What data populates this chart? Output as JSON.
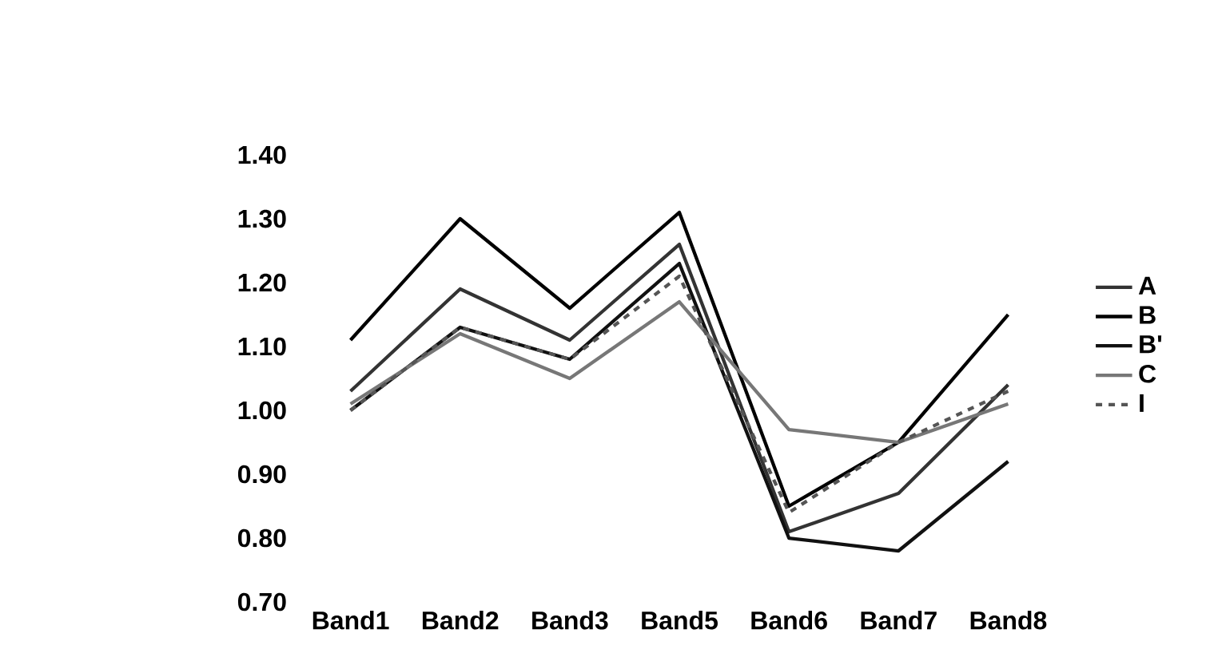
{
  "chart_data": {
    "type": "line",
    "categories": [
      "Band1",
      "Band2",
      "Band3",
      "Band5",
      "Band6",
      "Band7",
      "Band8"
    ],
    "series": [
      {
        "name": "A",
        "color": "#333333",
        "line_style": "solid",
        "values": [
          1.03,
          1.19,
          1.11,
          1.26,
          0.81,
          0.87,
          1.04
        ]
      },
      {
        "name": "B",
        "color": "#000000",
        "line_style": "solid",
        "values": [
          1.11,
          1.3,
          1.16,
          1.31,
          0.85,
          0.95,
          1.15
        ]
      },
      {
        "name": "B'",
        "color": "#111111",
        "line_style": "solid",
        "values": [
          1.0,
          1.13,
          1.08,
          1.23,
          0.8,
          0.78,
          0.92
        ]
      },
      {
        "name": "C",
        "color": "#777777",
        "line_style": "solid",
        "values": [
          1.01,
          1.12,
          1.05,
          1.17,
          0.97,
          0.95,
          1.01
        ]
      },
      {
        "name": "I",
        "color": "#555555",
        "line_style": "dashed",
        "values": [
          1.0,
          1.13,
          1.08,
          1.21,
          0.84,
          0.95,
          1.03
        ]
      }
    ],
    "ylim": [
      0.7,
      1.4
    ],
    "yticks": [
      {
        "value": 0.7,
        "label": "0.70"
      },
      {
        "value": 0.8,
        "label": "0.80"
      },
      {
        "value": 0.9,
        "label": "0.90"
      },
      {
        "value": 1.0,
        "label": "1.00"
      },
      {
        "value": 1.1,
        "label": "1.10"
      },
      {
        "value": 1.2,
        "label": "1.20"
      },
      {
        "value": 1.3,
        "label": "1.30"
      },
      {
        "value": 1.4,
        "label": "1.40"
      }
    ],
    "grid": false,
    "legend": "right",
    "marker": "none"
  }
}
